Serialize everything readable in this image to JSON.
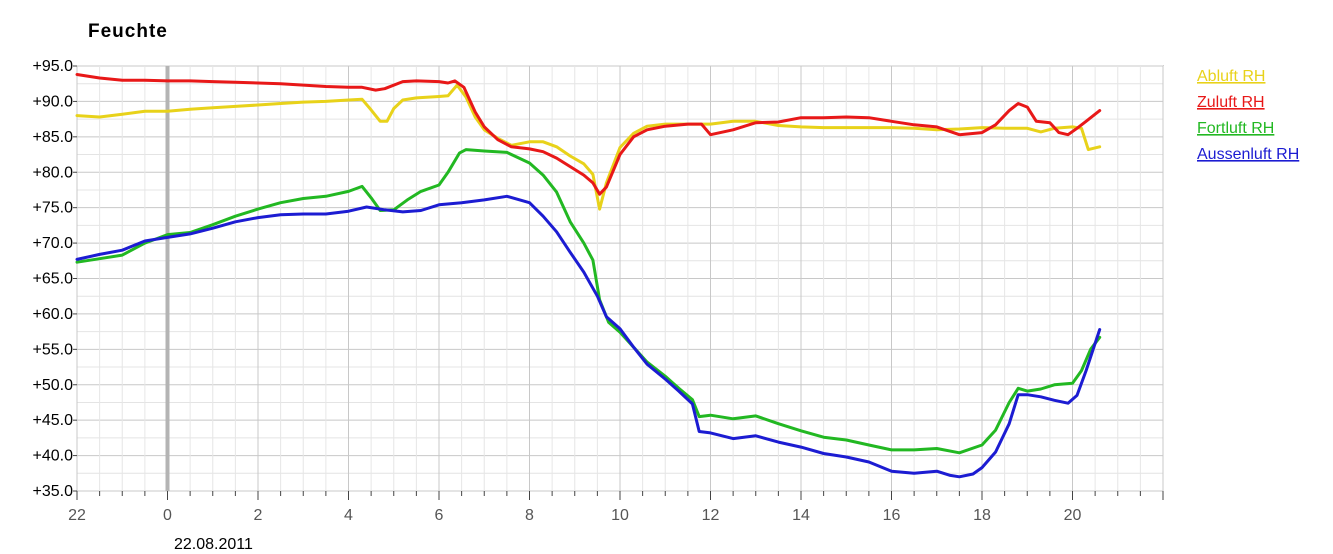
{
  "chart_data": {
    "type": "line",
    "title": "Feuchte",
    "date_label": "22.08.2011",
    "ylim": [
      35,
      95
    ],
    "yticks": [
      "+35.0",
      "+40.0",
      "+45.0",
      "+50.0",
      "+55.0",
      "+60.0",
      "+65.0",
      "+70.0",
      "+75.0",
      "+80.0",
      "+85.0",
      "+90.0",
      "+95.0"
    ],
    "xlim": [
      -2,
      22
    ],
    "xticks": [
      "22",
      "0",
      "2",
      "4",
      "6",
      "8",
      "10",
      "12",
      "14",
      "16",
      "18",
      "20"
    ],
    "day_boundary_x": 0,
    "legend_position": "right",
    "grid": true,
    "series": [
      {
        "name": "Abluft RH",
        "color": "#e8d21a",
        "points": [
          [
            -2,
            88
          ],
          [
            -1.5,
            87.8
          ],
          [
            -1,
            88.2
          ],
          [
            -0.5,
            88.6
          ],
          [
            0,
            88.6
          ],
          [
            0.5,
            88.9
          ],
          [
            1,
            89.1
          ],
          [
            1.5,
            89.3
          ],
          [
            2,
            89.5
          ],
          [
            2.5,
            89.7
          ],
          [
            3,
            89.9
          ],
          [
            3.5,
            90
          ],
          [
            4,
            90.2
          ],
          [
            4.3,
            90.3
          ],
          [
            4.5,
            88.8
          ],
          [
            4.7,
            87.2
          ],
          [
            4.85,
            87.2
          ],
          [
            5,
            89
          ],
          [
            5.2,
            90.2
          ],
          [
            5.5,
            90.5
          ],
          [
            6,
            90.7
          ],
          [
            6.2,
            90.8
          ],
          [
            6.4,
            92.3
          ],
          [
            6.6,
            90.6
          ],
          [
            6.8,
            87.8
          ],
          [
            7,
            86
          ],
          [
            7.3,
            84.8
          ],
          [
            7.6,
            83.8
          ],
          [
            8,
            84.3
          ],
          [
            8.3,
            84.3
          ],
          [
            8.6,
            83.6
          ],
          [
            8.9,
            82.3
          ],
          [
            9.2,
            81.2
          ],
          [
            9.4,
            79.7
          ],
          [
            9.55,
            74.8
          ],
          [
            9.7,
            78.5
          ],
          [
            10,
            83.5
          ],
          [
            10.3,
            85.5
          ],
          [
            10.6,
            86.5
          ],
          [
            11,
            86.8
          ],
          [
            11.5,
            86.8
          ],
          [
            12,
            86.8
          ],
          [
            12.5,
            87.2
          ],
          [
            13,
            87.2
          ],
          [
            13.5,
            86.6
          ],
          [
            14,
            86.4
          ],
          [
            14.5,
            86.3
          ],
          [
            15,
            86.3
          ],
          [
            15.5,
            86.3
          ],
          [
            16,
            86.3
          ],
          [
            16.5,
            86.2
          ],
          [
            17,
            86
          ],
          [
            17.5,
            86.1
          ],
          [
            18,
            86.3
          ],
          [
            18.5,
            86.2
          ],
          [
            19,
            86.2
          ],
          [
            19.3,
            85.7
          ],
          [
            19.6,
            86.2
          ],
          [
            20,
            86.4
          ],
          [
            20.2,
            86.2
          ],
          [
            20.35,
            83.2
          ],
          [
            20.6,
            83.6
          ]
        ]
      },
      {
        "name": "Zuluft RH",
        "color": "#e81818",
        "points": [
          [
            -2,
            93.8
          ],
          [
            -1.5,
            93.3
          ],
          [
            -1,
            93
          ],
          [
            -0.5,
            93
          ],
          [
            0,
            92.9
          ],
          [
            0.5,
            92.9
          ],
          [
            1,
            92.8
          ],
          [
            1.5,
            92.7
          ],
          [
            2,
            92.6
          ],
          [
            2.5,
            92.5
          ],
          [
            3,
            92.3
          ],
          [
            3.5,
            92.1
          ],
          [
            4,
            92
          ],
          [
            4.3,
            92
          ],
          [
            4.6,
            91.6
          ],
          [
            4.8,
            91.8
          ],
          [
            5.2,
            92.8
          ],
          [
            5.5,
            92.9
          ],
          [
            6,
            92.8
          ],
          [
            6.2,
            92.6
          ],
          [
            6.35,
            92.9
          ],
          [
            6.55,
            92
          ],
          [
            6.8,
            88.5
          ],
          [
            7,
            86.4
          ],
          [
            7.3,
            84.6
          ],
          [
            7.6,
            83.6
          ],
          [
            8,
            83.3
          ],
          [
            8.3,
            82.9
          ],
          [
            8.6,
            82
          ],
          [
            8.9,
            80.8
          ],
          [
            9.2,
            79.6
          ],
          [
            9.4,
            78.5
          ],
          [
            9.55,
            76.9
          ],
          [
            9.7,
            77.9
          ],
          [
            10,
            82.5
          ],
          [
            10.3,
            85
          ],
          [
            10.6,
            86
          ],
          [
            11,
            86.5
          ],
          [
            11.5,
            86.8
          ],
          [
            11.8,
            86.8
          ],
          [
            12,
            85.3
          ],
          [
            12.5,
            86
          ],
          [
            13,
            87
          ],
          [
            13.5,
            87.1
          ],
          [
            14,
            87.7
          ],
          [
            14.5,
            87.7
          ],
          [
            15,
            87.8
          ],
          [
            15.5,
            87.7
          ],
          [
            16,
            87.2
          ],
          [
            16.5,
            86.7
          ],
          [
            17,
            86.4
          ],
          [
            17.5,
            85.3
          ],
          [
            18,
            85.6
          ],
          [
            18.3,
            86.7
          ],
          [
            18.6,
            88.7
          ],
          [
            18.8,
            89.7
          ],
          [
            19,
            89.2
          ],
          [
            19.2,
            87.2
          ],
          [
            19.5,
            87
          ],
          [
            19.7,
            85.6
          ],
          [
            19.9,
            85.3
          ],
          [
            20.1,
            86.2
          ],
          [
            20.3,
            87.2
          ],
          [
            20.6,
            88.7
          ]
        ]
      },
      {
        "name": "Fortluft RH",
        "color": "#22b822",
        "points": [
          [
            -2,
            67.3
          ],
          [
            -1.5,
            67.8
          ],
          [
            -1,
            68.3
          ],
          [
            -0.5,
            70
          ],
          [
            0,
            71.2
          ],
          [
            0.5,
            71.5
          ],
          [
            1,
            72.6
          ],
          [
            1.5,
            73.8
          ],
          [
            2,
            74.8
          ],
          [
            2.5,
            75.7
          ],
          [
            3,
            76.3
          ],
          [
            3.5,
            76.6
          ],
          [
            4,
            77.3
          ],
          [
            4.3,
            78
          ],
          [
            4.5,
            76.4
          ],
          [
            4.7,
            74.6
          ],
          [
            5,
            74.7
          ],
          [
            5.3,
            76.1
          ],
          [
            5.6,
            77.3
          ],
          [
            6,
            78.2
          ],
          [
            6.2,
            80
          ],
          [
            6.45,
            82.7
          ],
          [
            6.6,
            83.2
          ],
          [
            7,
            83
          ],
          [
            7.5,
            82.8
          ],
          [
            8,
            81.3
          ],
          [
            8.3,
            79.6
          ],
          [
            8.6,
            77.2
          ],
          [
            8.9,
            73
          ],
          [
            9.2,
            70
          ],
          [
            9.4,
            67.6
          ],
          [
            9.55,
            62
          ],
          [
            9.75,
            58.8
          ],
          [
            10,
            57.4
          ],
          [
            10.3,
            55.3
          ],
          [
            10.6,
            53.2
          ],
          [
            11,
            51.2
          ],
          [
            11.3,
            49.5
          ],
          [
            11.6,
            47.9
          ],
          [
            11.75,
            45.5
          ],
          [
            12,
            45.7
          ],
          [
            12.5,
            45.2
          ],
          [
            13,
            45.6
          ],
          [
            13.5,
            44.5
          ],
          [
            14,
            43.5
          ],
          [
            14.5,
            42.6
          ],
          [
            15,
            42.2
          ],
          [
            15.5,
            41.5
          ],
          [
            16,
            40.8
          ],
          [
            16.5,
            40.8
          ],
          [
            17,
            41
          ],
          [
            17.5,
            40.4
          ],
          [
            18,
            41.5
          ],
          [
            18.3,
            43.6
          ],
          [
            18.6,
            47.5
          ],
          [
            18.8,
            49.5
          ],
          [
            19,
            49.1
          ],
          [
            19.3,
            49.4
          ],
          [
            19.6,
            50
          ],
          [
            20,
            50.2
          ],
          [
            20.2,
            52
          ],
          [
            20.4,
            55
          ],
          [
            20.6,
            56.7
          ]
        ]
      },
      {
        "name": "Aussenluft RH",
        "color": "#1c1cd2",
        "points": [
          [
            -2,
            67.7
          ],
          [
            -1.5,
            68.4
          ],
          [
            -1,
            69
          ],
          [
            -0.5,
            70.3
          ],
          [
            0,
            70.8
          ],
          [
            0.5,
            71.3
          ],
          [
            1,
            72.1
          ],
          [
            1.5,
            73
          ],
          [
            2,
            73.6
          ],
          [
            2.5,
            74
          ],
          [
            3,
            74.1
          ],
          [
            3.5,
            74.1
          ],
          [
            4,
            74.5
          ],
          [
            4.4,
            75.1
          ],
          [
            4.8,
            74.7
          ],
          [
            5.2,
            74.4
          ],
          [
            5.6,
            74.6
          ],
          [
            6,
            75.4
          ],
          [
            6.5,
            75.7
          ],
          [
            7,
            76.1
          ],
          [
            7.5,
            76.6
          ],
          [
            8,
            75.7
          ],
          [
            8.3,
            73.8
          ],
          [
            8.6,
            71.6
          ],
          [
            8.9,
            68.7
          ],
          [
            9.2,
            65.9
          ],
          [
            9.5,
            62.5
          ],
          [
            9.7,
            59.6
          ],
          [
            10,
            57.9
          ],
          [
            10.3,
            55.3
          ],
          [
            10.6,
            52.9
          ],
          [
            11,
            50.8
          ],
          [
            11.3,
            49.1
          ],
          [
            11.6,
            47.3
          ],
          [
            11.75,
            43.4
          ],
          [
            12,
            43.2
          ],
          [
            12.5,
            42.4
          ],
          [
            13,
            42.8
          ],
          [
            13.5,
            41.9
          ],
          [
            14,
            41.2
          ],
          [
            14.5,
            40.3
          ],
          [
            15,
            39.8
          ],
          [
            15.5,
            39.1
          ],
          [
            16,
            37.8
          ],
          [
            16.5,
            37.5
          ],
          [
            17,
            37.8
          ],
          [
            17.3,
            37.2
          ],
          [
            17.5,
            37
          ],
          [
            17.8,
            37.4
          ],
          [
            18,
            38.3
          ],
          [
            18.3,
            40.5
          ],
          [
            18.6,
            44.5
          ],
          [
            18.8,
            48.6
          ],
          [
            19,
            48.6
          ],
          [
            19.3,
            48.3
          ],
          [
            19.6,
            47.8
          ],
          [
            19.9,
            47.4
          ],
          [
            20.1,
            48.5
          ],
          [
            20.3,
            52
          ],
          [
            20.6,
            57.8
          ]
        ]
      }
    ]
  }
}
